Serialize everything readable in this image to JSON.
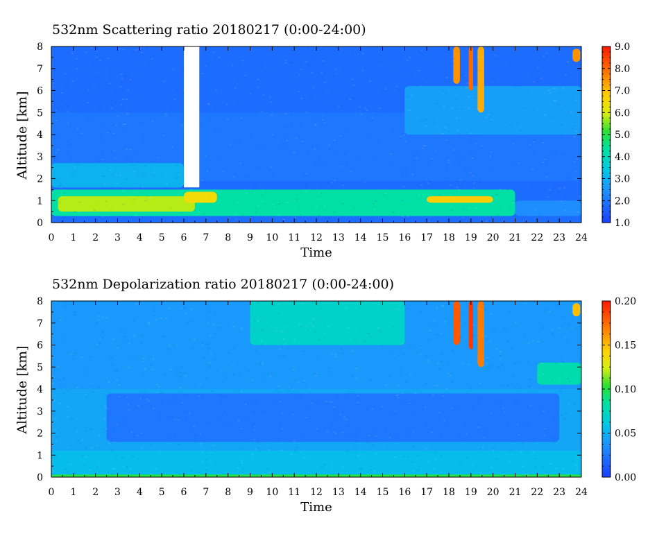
{
  "chart_data": [
    {
      "type": "heatmap",
      "title": "532nm Scattering ratio  20180217 (0:00-24:00)",
      "xlabel": "Time",
      "ylabel": "Altitude [km]",
      "xlim": [
        0,
        24
      ],
      "ylim": [
        0,
        8
      ],
      "xticks": [
        "0",
        "1",
        "2",
        "3",
        "4",
        "5",
        "6",
        "7",
        "8",
        "9",
        "10",
        "11",
        "12",
        "13",
        "14",
        "15",
        "16",
        "17",
        "18",
        "19",
        "20",
        "21",
        "22",
        "23",
        "24"
      ],
      "yticks": [
        "0",
        "1",
        "2",
        "3",
        "4",
        "5",
        "6",
        "7",
        "8"
      ],
      "colorbar": {
        "range": [
          1.0,
          9.0
        ],
        "ticks": [
          "1.0",
          "2.0",
          "3.0",
          "4.0",
          "5.0",
          "6.0",
          "7.0",
          "8.0",
          "9.0"
        ]
      },
      "features": [
        {
          "t": [
            0,
            24
          ],
          "z": [
            0,
            8
          ],
          "value": 1.8
        },
        {
          "t": [
            0,
            24
          ],
          "z": [
            1.9,
            5
          ],
          "value": 2.0
        },
        {
          "t": [
            0,
            6
          ],
          "z": [
            1.6,
            2.7
          ],
          "value": 3.0
        },
        {
          "t": [
            0,
            21
          ],
          "z": [
            0.3,
            1.5
          ],
          "value": 4.3
        },
        {
          "t": [
            0.3,
            6.5
          ],
          "z": [
            0.5,
            1.2
          ],
          "value": 5.8
        },
        {
          "t": [
            6,
            7.5
          ],
          "z": [
            0.9,
            1.4
          ],
          "value": 6.5
        },
        {
          "t": [
            17,
            20
          ],
          "z": [
            0.9,
            1.2
          ],
          "value": 6.8
        },
        {
          "t": [
            21,
            24
          ],
          "z": [
            0.3,
            1.0
          ],
          "value": 2.4
        },
        {
          "t": [
            16,
            24
          ],
          "z": [
            4,
            6.2
          ],
          "value": 2.7
        },
        {
          "t": [
            18.2,
            18.5
          ],
          "z": [
            6.3,
            8
          ],
          "value": 7.5
        },
        {
          "t": [
            18.9,
            19.1
          ],
          "z": [
            6.0,
            8
          ],
          "value": 8.0
        },
        {
          "t": [
            19.3,
            19.6
          ],
          "z": [
            5.0,
            8
          ],
          "value": 7.2
        },
        {
          "t": [
            23.6,
            23.95
          ],
          "z": [
            7.3,
            7.9
          ],
          "value": 7.5
        }
      ],
      "missing": [
        {
          "t": [
            6.0,
            6.7
          ],
          "z": [
            1.6,
            8
          ]
        }
      ]
    },
    {
      "type": "heatmap",
      "title": "532nm Depolarization ratio  20180217 (0:00-24:00)",
      "xlabel": "Time",
      "ylabel": "Altitude [km]",
      "xlim": [
        0,
        24
      ],
      "ylim": [
        0,
        8
      ],
      "xticks": [
        "0",
        "1",
        "2",
        "3",
        "4",
        "5",
        "6",
        "7",
        "8",
        "9",
        "10",
        "11",
        "12",
        "13",
        "14",
        "15",
        "16",
        "17",
        "18",
        "19",
        "20",
        "21",
        "22",
        "23",
        "24"
      ],
      "yticks": [
        "0",
        "1",
        "2",
        "3",
        "4",
        "5",
        "6",
        "7",
        "8"
      ],
      "colorbar": {
        "range": [
          0.0,
          0.2
        ],
        "ticks": [
          "0.00",
          "0.05",
          "0.10",
          "0.15",
          "0.20"
        ]
      },
      "features": [
        {
          "t": [
            0,
            24
          ],
          "z": [
            0,
            8
          ],
          "value": 0.045
        },
        {
          "t": [
            2.5,
            23
          ],
          "z": [
            1.6,
            3.8
          ],
          "value": 0.025
        },
        {
          "t": [
            0,
            24
          ],
          "z": [
            4,
            8
          ],
          "value": 0.04
        },
        {
          "t": [
            9,
            16
          ],
          "z": [
            6,
            8
          ],
          "value": 0.07
        },
        {
          "t": [
            0,
            24
          ],
          "z": [
            0.1,
            1.2
          ],
          "value": 0.055
        },
        {
          "t": [
            0,
            24
          ],
          "z": [
            0,
            0.12
          ],
          "value": 0.1
        },
        {
          "t": [
            18.2,
            18.5
          ],
          "z": [
            6.0,
            8
          ],
          "value": 0.18
        },
        {
          "t": [
            18.9,
            19.1
          ],
          "z": [
            5.8,
            8
          ],
          "value": 0.19
        },
        {
          "t": [
            19.3,
            19.6
          ],
          "z": [
            5.0,
            8
          ],
          "value": 0.17
        },
        {
          "t": [
            22,
            24
          ],
          "z": [
            4.2,
            5.2
          ],
          "value": 0.08
        },
        {
          "t": [
            23.6,
            23.95
          ],
          "z": [
            7.3,
            7.9
          ],
          "value": 0.15
        }
      ],
      "missing": []
    }
  ]
}
